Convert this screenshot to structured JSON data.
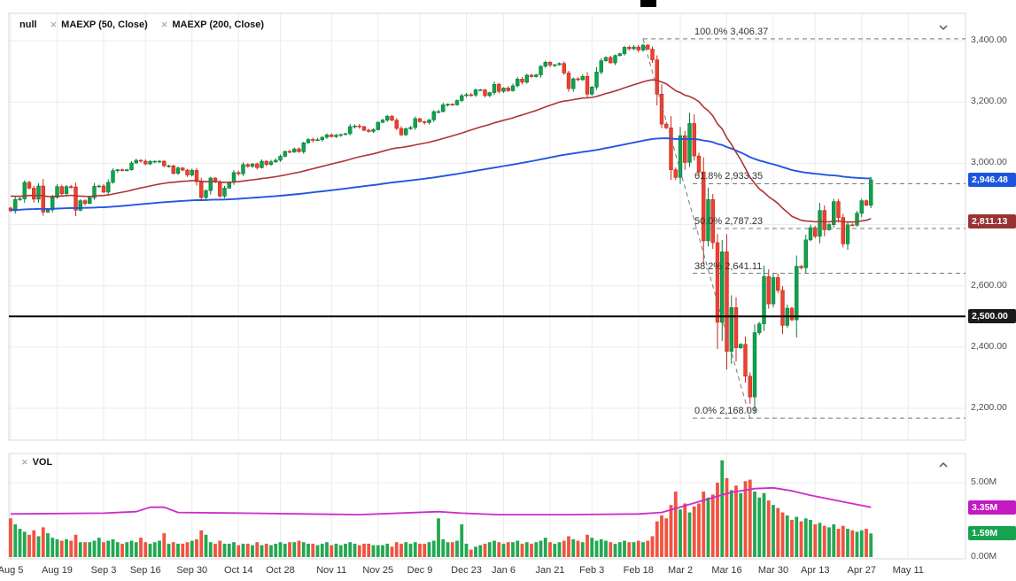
{
  "icons": {
    "close": "×",
    "price_pane_collapse": "chevron-down",
    "volume_pane_collapse": "chevron-up"
  },
  "price_pane": {
    "legend": {
      "series_label": "null",
      "indicators": [
        {
          "close_icon": "×",
          "label": "MAEXP (50, Close)"
        },
        {
          "close_icon": "×",
          "label": "MAEXP (200, Close)"
        }
      ]
    },
    "y_axis_labels": [
      {
        "text": "3,400.00",
        "value": 3400
      },
      {
        "text": "3,200.00",
        "value": 3200
      },
      {
        "text": "3,000.00",
        "value": 3000
      },
      {
        "text": "2,800.00",
        "value": 2800
      },
      {
        "text": "2,600.00",
        "value": 2600
      },
      {
        "text": "2,400.00",
        "value": 2400
      },
      {
        "text": "2,200.00",
        "value": 2200
      }
    ],
    "price_badges": [
      {
        "text": "2,946.48",
        "value": 2946.48,
        "color": "#1c54e0"
      },
      {
        "text": "2,811.13",
        "value": 2811.13,
        "color": "#993333"
      },
      {
        "text": "2,500.00",
        "value": 2500,
        "color": "#1a1a1a"
      }
    ]
  },
  "volume_pane": {
    "legend": {
      "close_icon": "×",
      "label": "VOL"
    },
    "y_axis_labels": [
      {
        "text": "5.00M",
        "value": 5.0
      },
      {
        "text": "0.00M",
        "value": 0.0
      }
    ],
    "badges": [
      {
        "text": "3.35M",
        "value": 3.35,
        "color": "#c219c2"
      },
      {
        "text": "1.59M",
        "value": 1.59,
        "color": "#17a24f"
      }
    ]
  },
  "chart_data": {
    "type": "candlestick",
    "title": "null",
    "x_ticks": [
      {
        "label": "Aug 5",
        "i": 0
      },
      {
        "label": "Aug 19",
        "i": 10
      },
      {
        "label": "Sep 3",
        "i": 20
      },
      {
        "label": "Sep 16",
        "i": 29
      },
      {
        "label": "Sep 30",
        "i": 39
      },
      {
        "label": "Oct 14",
        "i": 49
      },
      {
        "label": "Oct 28",
        "i": 58
      },
      {
        "label": "Nov 11",
        "i": 69
      },
      {
        "label": "Nov 25",
        "i": 79
      },
      {
        "label": "Dec 9",
        "i": 88
      },
      {
        "label": "Dec 23",
        "i": 98
      },
      {
        "label": "Jan 6",
        "i": 106
      },
      {
        "label": "Jan 21",
        "i": 116
      },
      {
        "label": "Feb 3",
        "i": 125
      },
      {
        "label": "Feb 18",
        "i": 135
      },
      {
        "label": "Mar 2",
        "i": 144
      },
      {
        "label": "Mar 16",
        "i": 154
      },
      {
        "label": "Mar 30",
        "i": 164
      },
      {
        "label": "Apr 13",
        "i": 173
      },
      {
        "label": "Apr 27",
        "i": 183
      },
      {
        "label": "May 11",
        "i": 193
      }
    ],
    "y_axis": {
      "min": 2096,
      "max": 3490,
      "gridlines": [
        3400,
        3200,
        3000,
        2800,
        2600,
        2400,
        2200
      ]
    },
    "closes": [
      2845,
      2882,
      2884,
      2938,
      2919,
      2883,
      2926,
      2841,
      2848,
      2889,
      2924,
      2901,
      2924,
      2923,
      2847,
      2878,
      2869,
      2888,
      2925,
      2926,
      2906,
      2938,
      2976,
      2979,
      2978,
      2979,
      3001,
      3010,
      3007,
      2998,
      3006,
      3007,
      3007,
      2992,
      2992,
      2967,
      2985,
      2978,
      2962,
      2977,
      2940,
      2888,
      2911,
      2952,
      2939,
      2893,
      2919,
      2938,
      2970,
      2966,
      2996,
      2990,
      2998,
      2986,
      3007,
      2996,
      3005,
      3010,
      3023,
      3039,
      3037,
      3047,
      3038,
      3067,
      3078,
      3075,
      3077,
      3085,
      3093,
      3087,
      3092,
      3094,
      3097,
      3120,
      3122,
      3120,
      3108,
      3104,
      3110,
      3134,
      3141,
      3154,
      3141,
      3114,
      3093,
      3113,
      3117,
      3146,
      3136,
      3133,
      3142,
      3169,
      3169,
      3191,
      3193,
      3191,
      3205,
      3221,
      3224,
      3223,
      3240,
      3240,
      3221,
      3231,
      3258,
      3235,
      3246,
      3237,
      3253,
      3275,
      3265,
      3288,
      3283,
      3289,
      3317,
      3330,
      3321,
      3322,
      3326,
      3295,
      3244,
      3276,
      3273,
      3284,
      3226,
      3249,
      3298,
      3335,
      3346,
      3328,
      3352,
      3358,
      3379,
      3374,
      3380,
      3370,
      3386,
      3373,
      3338,
      3226,
      3128,
      3116,
      2979,
      2954,
      3090,
      3003,
      3130,
      3024,
      2972,
      2747,
      2882,
      2741,
      2481,
      2711,
      2386,
      2529,
      2398,
      2409,
      2305,
      2237,
      2447,
      2476,
      2630,
      2541,
      2627,
      2585,
      2471,
      2527,
      2489,
      2664,
      2659,
      2750,
      2790,
      2762,
      2846,
      2783,
      2800,
      2875,
      2823,
      2737,
      2799,
      2798,
      2837,
      2878,
      2863,
      2946
    ],
    "volumes_m": [
      2.6,
      2.2,
      1.9,
      1.7,
      1.5,
      1.8,
      1.4,
      2.0,
      1.6,
      1.3,
      1.2,
      1.1,
      1.2,
      1.1,
      1.5,
      1.0,
      1.0,
      1.0,
      1.1,
      1.3,
      1.0,
      1.1,
      1.2,
      1.0,
      0.9,
      1.0,
      1.1,
      1.0,
      1.3,
      1.0,
      0.9,
      1.0,
      1.1,
      1.6,
      0.9,
      1.0,
      0.9,
      0.9,
      1.0,
      1.1,
      1.2,
      1.8,
      1.5,
      1.0,
      0.9,
      1.1,
      0.9,
      0.9,
      1.0,
      0.8,
      0.9,
      0.9,
      0.8,
      1.0,
      0.8,
      0.9,
      0.8,
      0.9,
      1.0,
      0.9,
      1.0,
      1.0,
      1.1,
      1.0,
      0.9,
      0.9,
      0.8,
      0.9,
      1.0,
      0.8,
      0.9,
      0.8,
      0.9,
      1.0,
      0.9,
      0.8,
      0.9,
      0.9,
      0.8,
      0.8,
      0.8,
      0.9,
      0.7,
      1.0,
      0.9,
      1.0,
      0.9,
      1.0,
      0.9,
      0.9,
      1.0,
      1.1,
      2.6,
      1.2,
      1.0,
      1.0,
      1.1,
      2.2,
      0.9,
      0.5,
      0.7,
      0.8,
      0.9,
      1.0,
      1.1,
      1.0,
      0.9,
      1.0,
      1.0,
      1.1,
      0.9,
      1.0,
      0.9,
      1.0,
      1.1,
      1.3,
      1.0,
      0.9,
      1.0,
      1.1,
      1.4,
      1.2,
      1.1,
      1.0,
      1.5,
      1.3,
      1.1,
      1.2,
      1.1,
      1.0,
      0.9,
      1.0,
      1.1,
      1.0,
      1.0,
      1.1,
      1.0,
      1.1,
      1.4,
      2.4,
      2.8,
      2.6,
      3.5,
      4.4,
      3.2,
      3.6,
      3.0,
      3.4,
      3.6,
      4.4,
      4.0,
      4.2,
      5.0,
      6.5,
      5.3,
      4.5,
      4.8,
      4.3,
      5.1,
      5.2,
      4.4,
      4.0,
      4.3,
      3.8,
      3.5,
      3.3,
      3.0,
      2.8,
      2.5,
      2.7,
      2.4,
      2.6,
      2.5,
      2.2,
      2.3,
      2.1,
      2.0,
      2.2,
      1.9,
      2.1,
      1.9,
      1.8,
      1.7,
      1.8,
      1.9,
      1.59
    ],
    "overlays": {
      "ema50": {
        "label": "MAEXP (50, Close)",
        "color": "#b03333",
        "start_value": 2895,
        "last_value": 2811.13
      },
      "ema200": {
        "label": "MAEXP (200, Close)",
        "color": "#2356e0",
        "start_value": 2848,
        "last_value": 2946.48
      }
    },
    "fibonacci": {
      "levels": [
        {
          "pct": "100.0%",
          "price": 3406.37,
          "label": "100.0% 3,406.37"
        },
        {
          "pct": "61.8%",
          "price": 2933.35,
          "label": "61.8% 2,933.35"
        },
        {
          "pct": "50.0%",
          "price": 2787.23,
          "label": "50.0% 2,787.23"
        },
        {
          "pct": "38.2%",
          "price": 2641.11,
          "label": "38.2% 2,641.11"
        },
        {
          "pct": "0.0%",
          "price": 2168.09,
          "label": "0.0% 2,168.09"
        }
      ],
      "trend": {
        "from_i": 136,
        "from_price": 3406.37,
        "to_i": 159,
        "to_price": 2168.09
      },
      "sub_line_x": 782,
      "label_x": 784
    },
    "hline": {
      "value": 2500,
      "color": "#000000"
    },
    "volume_ma_points": [
      [
        0,
        2.9
      ],
      [
        20,
        2.95
      ],
      [
        27,
        3.05
      ],
      [
        30,
        3.35
      ],
      [
        33,
        3.35
      ],
      [
        36,
        3.0
      ],
      [
        50,
        2.95
      ],
      [
        75,
        2.85
      ],
      [
        92,
        3.05
      ],
      [
        97,
        2.95
      ],
      [
        105,
        2.85
      ],
      [
        120,
        2.85
      ],
      [
        135,
        2.9
      ],
      [
        140,
        3.0
      ],
      [
        145,
        3.45
      ],
      [
        150,
        3.9
      ],
      [
        155,
        4.35
      ],
      [
        160,
        4.6
      ],
      [
        164,
        4.65
      ],
      [
        168,
        4.45
      ],
      [
        172,
        4.15
      ],
      [
        176,
        3.9
      ],
      [
        180,
        3.65
      ],
      [
        185,
        3.35
      ]
    ],
    "colors": {
      "up": "#0ea34d",
      "up_stroke": "#0a7a38",
      "down": "#ef402f",
      "down_stroke": "#c52a1c",
      "vol_up": "#22a852",
      "vol_down": "#f1533f",
      "vol_ma": "#cb2ccb",
      "grid": "#ececec",
      "border": "#d9d9d9",
      "fib": "#787878"
    },
    "layout": {
      "x0": 12,
      "dx": 5.25,
      "price_pane": {
        "l": 10,
        "t": 15,
        "r": 1090,
        "b": 497
      },
      "vol_pane": {
        "l": 10,
        "t": 512,
        "r": 1090,
        "b": 631,
        "zero_y": 629,
        "vmax": 6.96
      }
    },
    "legend_position": "top-left",
    "grid": true
  }
}
